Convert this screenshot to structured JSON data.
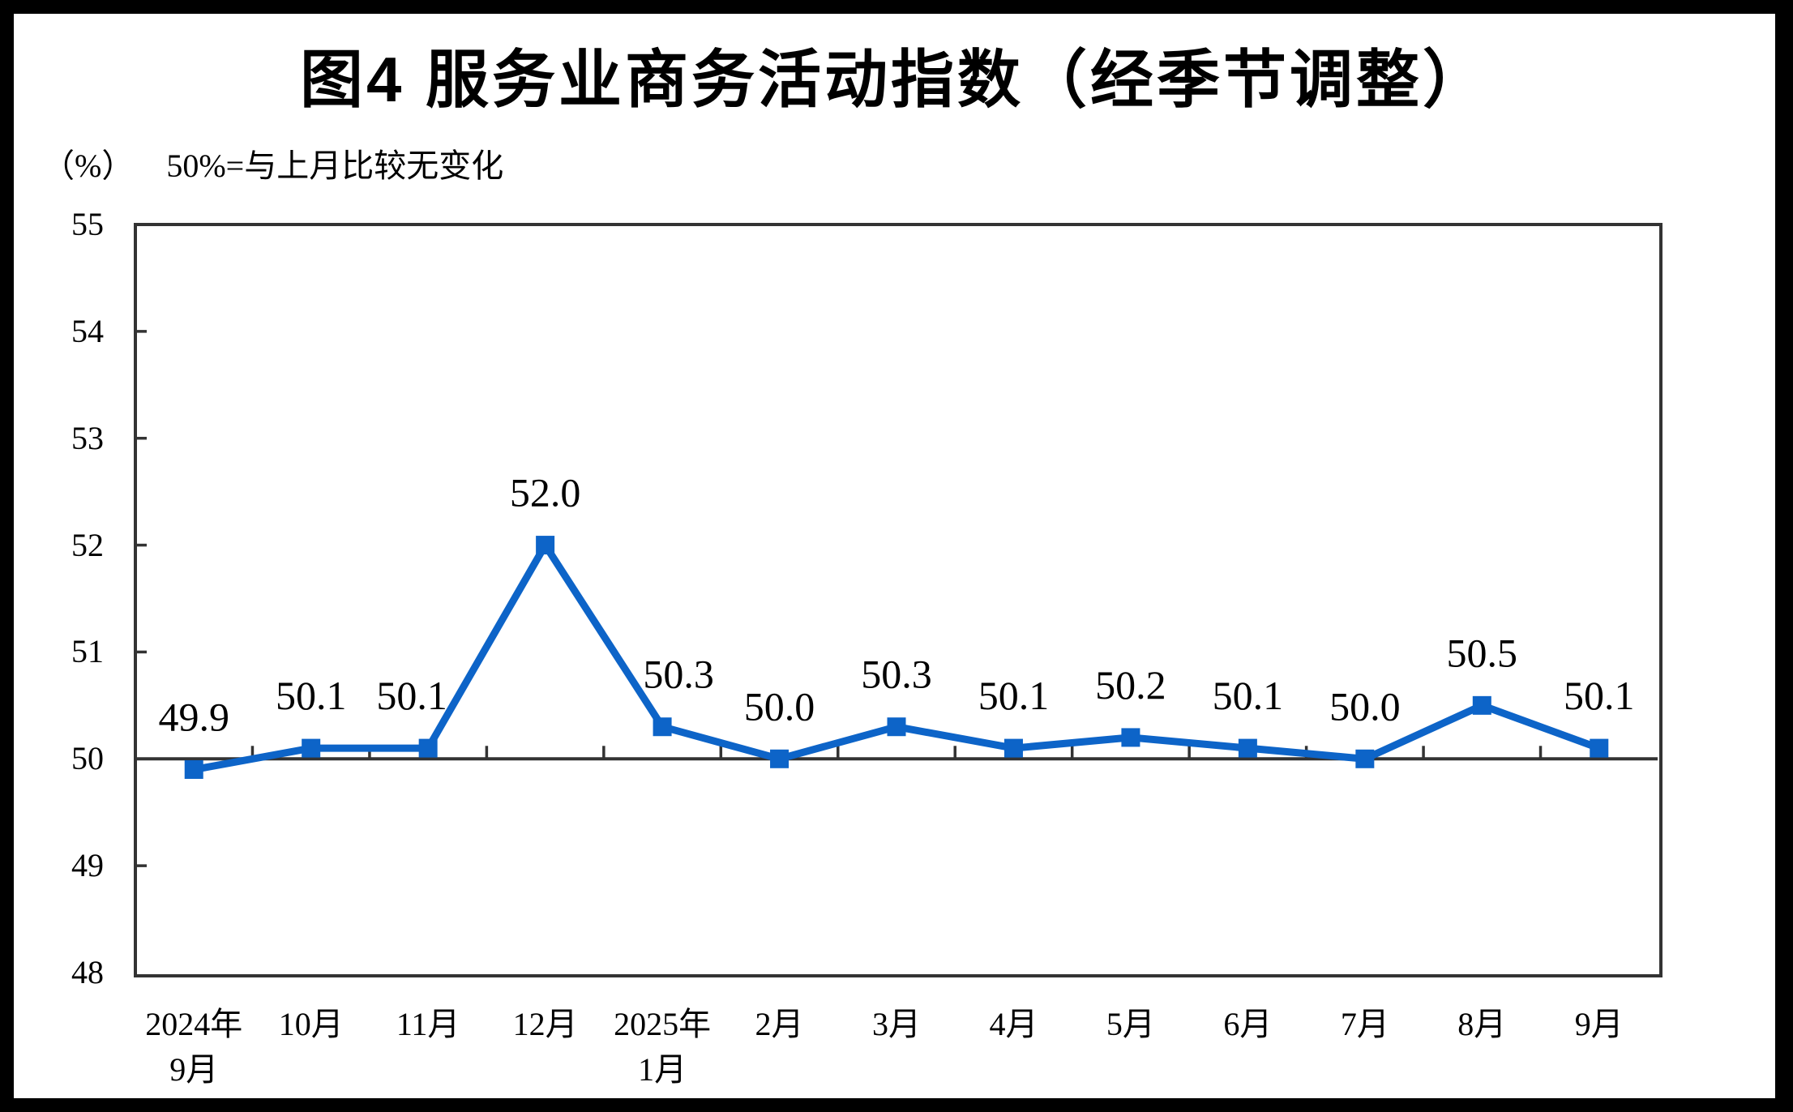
{
  "header": {
    "title": "图4  服务业商务活动指数（经季节调整）",
    "unit_label": "（%）",
    "note": "50%=与上月比较无变化"
  },
  "chart_data": {
    "type": "line",
    "title": "图4 服务业商务活动指数（经季节调整）",
    "ylabel": "（%）",
    "annotation": "50%=与上月比较无变化",
    "categories": [
      [
        "2024年",
        "9月"
      ],
      [
        "10月"
      ],
      [
        "11月"
      ],
      [
        "12月"
      ],
      [
        "2025年",
        "1月"
      ],
      [
        "2月"
      ],
      [
        "3月"
      ],
      [
        "4月"
      ],
      [
        "5月"
      ],
      [
        "6月"
      ],
      [
        "7月"
      ],
      [
        "8月"
      ],
      [
        "9月"
      ]
    ],
    "values": [
      49.9,
      50.1,
      50.1,
      52.0,
      50.3,
      50.0,
      50.3,
      50.1,
      50.2,
      50.1,
      50.0,
      50.5,
      50.1
    ],
    "data_labels": [
      "49.9",
      "50.1",
      "50.1",
      "52.0",
      "50.3",
      "50.0",
      "50.3",
      "50.1",
      "50.2",
      "50.1",
      "50.0",
      "50.5",
      "50.1"
    ],
    "label_dx": [
      0,
      0,
      -20,
      0,
      20,
      0,
      0,
      0,
      0,
      0,
      0,
      0,
      0
    ],
    "ylim": [
      48,
      55
    ],
    "yticks": [
      55,
      54,
      53,
      52,
      51,
      50,
      49,
      48
    ],
    "reference_y": 50,
    "grid": "off",
    "legend": "none",
    "line_color": "#0D64C8",
    "axis_color": "#333333",
    "label_color": "#000000"
  }
}
